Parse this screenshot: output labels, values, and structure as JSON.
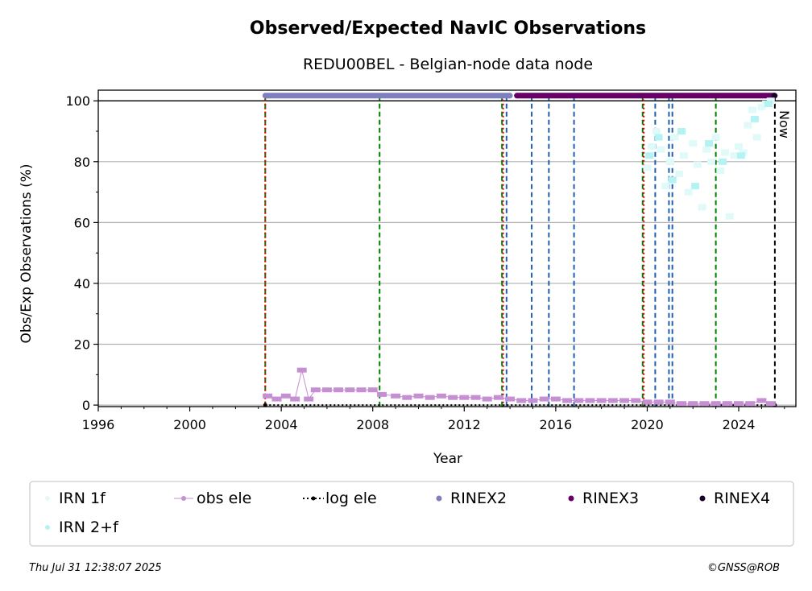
{
  "chart_data": {
    "type": "scatter",
    "title": "Observed/Expected NavIC Observations",
    "subtitle": "REDU00BEL - Belgian-node data node",
    "xlabel": "Year",
    "ylabel": "Obs/Exp Observations (%)",
    "xlim": [
      1996,
      2026.5
    ],
    "ylim": [
      -0.5,
      103.5
    ],
    "xticks": [
      1996,
      2000,
      2004,
      2008,
      2012,
      2016,
      2020,
      2024
    ],
    "yticks": [
      0,
      20,
      40,
      60,
      80,
      100
    ],
    "grid": "horizontal",
    "now_label": "Now",
    "now_year": 2025.58,
    "vlines": {
      "red": [
        2003.3,
        2013.7,
        2019.85
      ],
      "green": [
        2003.3,
        2008.3,
        2013.65,
        2019.8,
        2023.0
      ],
      "blue": [
        2013.85,
        2014.95,
        2015.7,
        2016.8,
        2020.35,
        2020.95,
        2021.1
      ]
    },
    "series": [
      {
        "name": "IRN 1f",
        "color": "#e0fafa",
        "points": [
          [
            2020.0,
            78
          ],
          [
            2020.2,
            85
          ],
          [
            2020.4,
            90
          ],
          [
            2020.6,
            84
          ],
          [
            2020.8,
            72
          ],
          [
            2021.0,
            80
          ],
          [
            2021.2,
            88
          ],
          [
            2021.4,
            76
          ],
          [
            2021.6,
            82
          ],
          [
            2021.8,
            70
          ],
          [
            2022.0,
            86
          ],
          [
            2022.2,
            79
          ],
          [
            2022.4,
            65
          ],
          [
            2022.6,
            84
          ],
          [
            2022.8,
            80
          ],
          [
            2023.0,
            88
          ],
          [
            2023.2,
            77
          ],
          [
            2023.4,
            83
          ],
          [
            2023.6,
            62
          ],
          [
            2023.8,
            82
          ],
          [
            2024.0,
            85
          ],
          [
            2024.2,
            83
          ],
          [
            2024.4,
            92
          ],
          [
            2024.6,
            97
          ],
          [
            2024.8,
            88
          ],
          [
            2025.0,
            98
          ],
          [
            2025.2,
            99
          ],
          [
            2025.4,
            100
          ]
        ]
      },
      {
        "name": "IRN 2+f",
        "color": "#b3f3f3",
        "points": [
          [
            2020.1,
            82
          ],
          [
            2020.5,
            88
          ],
          [
            2021.1,
            74
          ],
          [
            2021.5,
            90
          ],
          [
            2022.1,
            72
          ],
          [
            2022.7,
            86
          ],
          [
            2023.3,
            80
          ],
          [
            2024.1,
            82
          ],
          [
            2024.7,
            94
          ],
          [
            2025.3,
            99
          ]
        ]
      },
      {
        "name": "obs ele",
        "color": "#c68fd4",
        "points": [
          [
            2003.4,
            3
          ],
          [
            2003.8,
            2
          ],
          [
            2004.2,
            3
          ],
          [
            2004.6,
            2
          ],
          [
            2004.9,
            11.5
          ],
          [
            2005.2,
            2
          ],
          [
            2005.5,
            5
          ],
          [
            2006.0,
            5
          ],
          [
            2006.5,
            5
          ],
          [
            2007.0,
            5
          ],
          [
            2007.5,
            5
          ],
          [
            2008.0,
            5
          ],
          [
            2008.4,
            3.5
          ],
          [
            2009.0,
            3
          ],
          [
            2009.5,
            2.5
          ],
          [
            2010.0,
            3
          ],
          [
            2010.5,
            2.5
          ],
          [
            2011.0,
            3
          ],
          [
            2011.5,
            2.5
          ],
          [
            2012.0,
            2.5
          ],
          [
            2012.5,
            2.5
          ],
          [
            2013.0,
            2
          ],
          [
            2013.5,
            2.5
          ],
          [
            2014.0,
            2
          ],
          [
            2014.5,
            1.5
          ],
          [
            2015.0,
            1.5
          ],
          [
            2015.5,
            2
          ],
          [
            2016.0,
            2
          ],
          [
            2016.5,
            1.5
          ],
          [
            2017.0,
            1.5
          ],
          [
            2017.5,
            1.5
          ],
          [
            2018.0,
            1.5
          ],
          [
            2018.5,
            1.5
          ],
          [
            2019.0,
            1.5
          ],
          [
            2019.5,
            1.5
          ],
          [
            2020.0,
            1
          ],
          [
            2020.5,
            1
          ],
          [
            2021.0,
            1
          ],
          [
            2021.5,
            0.5
          ],
          [
            2022.0,
            0.5
          ],
          [
            2022.5,
            0.5
          ],
          [
            2023.0,
            0.5
          ],
          [
            2023.5,
            0.5
          ],
          [
            2024.0,
            0.5
          ],
          [
            2024.5,
            0.5
          ],
          [
            2025.0,
            1.5
          ],
          [
            2025.4,
            0.5
          ]
        ]
      },
      {
        "name": "log ele",
        "color": "#000000",
        "points": [
          [
            2003.3,
            0
          ],
          [
            2025.58,
            0
          ]
        ]
      },
      {
        "name": "RINEX2",
        "color": "#7f7fbf",
        "points": [
          [
            2003.3,
            101.7
          ],
          [
            2014.0,
            101.7
          ]
        ]
      },
      {
        "name": "RINEX3",
        "color": "#660066",
        "points": [
          [
            2014.3,
            101.7
          ],
          [
            2025.58,
            101.7
          ]
        ]
      },
      {
        "name": "RINEX4",
        "color": "#1a0026",
        "points": [
          [
            2025.55,
            101.7
          ]
        ]
      }
    ]
  },
  "legend": {
    "items": [
      {
        "label": "IRN 1f"
      },
      {
        "label": "obs ele"
      },
      {
        "label": "log ele"
      },
      {
        "label": "RINEX2"
      },
      {
        "label": "RINEX3"
      },
      {
        "label": "RINEX4"
      },
      {
        "label": "IRN 2+f"
      }
    ]
  },
  "footer": {
    "timestamp": "Thu Jul 31 12:38:07 2025",
    "copyright": "©GNSS@ROB"
  }
}
